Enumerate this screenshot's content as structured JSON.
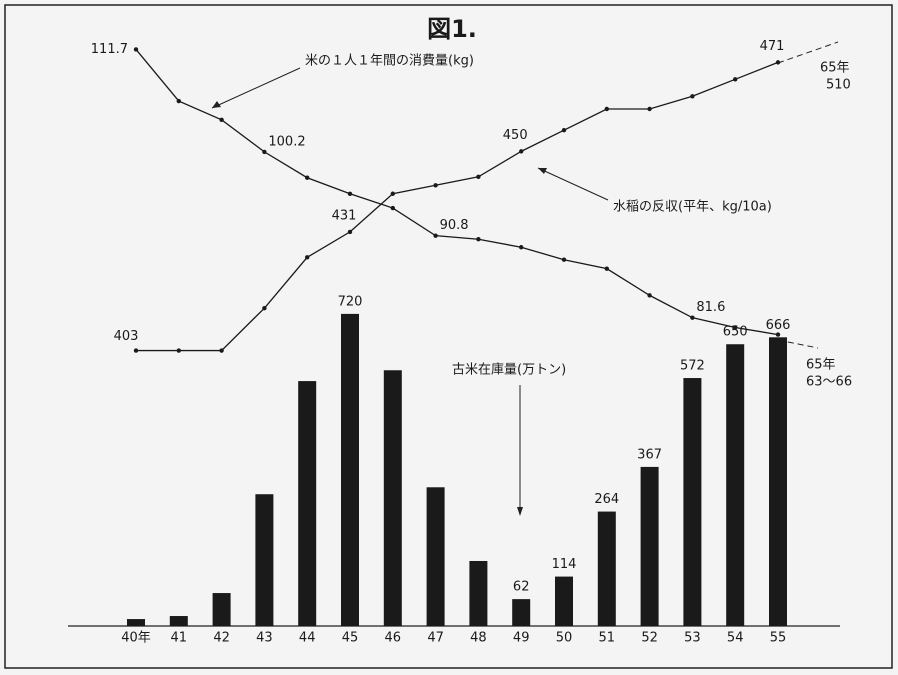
{
  "chart_data": {
    "type": "bar-line",
    "title": "図1.",
    "categories": [
      "40年",
      "41",
      "42",
      "43",
      "44",
      "45",
      "46",
      "47",
      "48",
      "49",
      "50",
      "51",
      "52",
      "53",
      "54",
      "55"
    ],
    "series": [
      {
        "name": "米の１人１年間の消費量(kg)",
        "type": "line",
        "color": "#1a1a1a",
        "ylim": [
          47,
          115
        ],
        "values": [
          111.7,
          105.9,
          103.8,
          100.2,
          97.3,
          95.5,
          93.9,
          90.8,
          90.4,
          89.5,
          88.1,
          87.1,
          84.1,
          81.6,
          80.5,
          79.7
        ],
        "value_labels": [
          "111.7",
          null,
          null,
          "100.2",
          null,
          null,
          null,
          "90.8",
          null,
          null,
          null,
          null,
          null,
          "81.6",
          null,
          null
        ],
        "annotation": [
          "65年",
          "63～66"
        ]
      },
      {
        "name": "水稲の反収(平年、kg/10a)",
        "type": "line",
        "color": "#1a1a1a",
        "ylim": [
          338,
          481
        ],
        "values": [
          403,
          403,
          403,
          413,
          425,
          431,
          440,
          442,
          444,
          450,
          455,
          460,
          460,
          463,
          467,
          471
        ],
        "value_labels": [
          "403",
          null,
          null,
          null,
          null,
          "431",
          null,
          null,
          null,
          "450",
          null,
          null,
          null,
          null,
          null,
          "471"
        ],
        "annotation": [
          "65年",
          "510"
        ]
      },
      {
        "name": "古米在庫量(万トン)",
        "type": "bar",
        "color": "#1a1a1a",
        "ylim": [
          0,
          1398
        ],
        "values": [
          16,
          23,
          76,
          304,
          565,
          720,
          590,
          320,
          150,
          62,
          114,
          264,
          367,
          572,
          650,
          666
        ],
        "value_labels": [
          null,
          null,
          null,
          null,
          null,
          "720",
          null,
          null,
          null,
          "62",
          "114",
          "264",
          "367",
          "572",
          "650",
          "666"
        ]
      }
    ]
  }
}
